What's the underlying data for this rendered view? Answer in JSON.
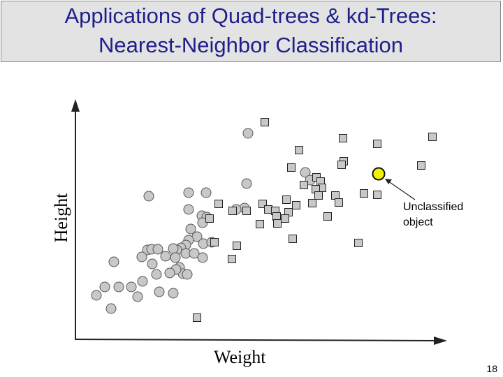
{
  "slide": {
    "title_line1": "Applications of Quad-trees & kd-Trees:",
    "title_line2": "Nearest-Neighbor Classification",
    "page_number": "18"
  },
  "annotation": {
    "line1": "Unclassified",
    "line2": "object"
  },
  "axes": {
    "xlabel": "Weight",
    "ylabel": "Height"
  },
  "colors": {
    "point_fill": "#c8c8c8",
    "unclassified_fill": "#f2f200",
    "title_text": "#1f1f8c"
  },
  "chart_data": {
    "type": "scatter",
    "xlabel": "Weight",
    "ylabel": "Height",
    "grid": false,
    "series": [
      {
        "marker": "circle",
        "points": [
          [
            355,
            191
          ],
          [
            437,
            247
          ],
          [
            444,
            258
          ],
          [
            353,
            263
          ],
          [
            213,
            281
          ],
          [
            270,
            276
          ],
          [
            295,
            276
          ],
          [
            350,
            298
          ],
          [
            338,
            300
          ],
          [
            270,
            300
          ],
          [
            289,
            309
          ],
          [
            296,
            311
          ],
          [
            290,
            319
          ],
          [
            273,
            328
          ],
          [
            282,
            339
          ],
          [
            270,
            344
          ],
          [
            266,
            351
          ],
          [
            259,
            355
          ],
          [
            253,
            358
          ],
          [
            211,
            358
          ],
          [
            217,
            357
          ],
          [
            226,
            357
          ],
          [
            248,
            356
          ],
          [
            291,
            349
          ],
          [
            303,
            347
          ],
          [
            251,
            369
          ],
          [
            237,
            367
          ],
          [
            266,
            363
          ],
          [
            278,
            363
          ],
          [
            290,
            369
          ],
          [
            203,
            368
          ],
          [
            163,
            375
          ],
          [
            218,
            378
          ],
          [
            257,
            383
          ],
          [
            262,
            392
          ],
          [
            252,
            386
          ],
          [
            243,
            391
          ],
          [
            268,
            393
          ],
          [
            224,
            393
          ],
          [
            204,
            403
          ],
          [
            188,
            411
          ],
          [
            170,
            411
          ],
          [
            150,
            411
          ],
          [
            138,
            423
          ],
          [
            197,
            425
          ],
          [
            228,
            418
          ],
          [
            248,
            420
          ],
          [
            159,
            442
          ]
        ]
      },
      {
        "marker": "square",
        "points": [
          [
            379,
            175
          ],
          [
            491,
            198
          ],
          [
            540,
            206
          ],
          [
            619,
            196
          ],
          [
            428,
            215
          ],
          [
            492,
            231
          ],
          [
            603,
            237
          ],
          [
            417,
            240
          ],
          [
            489,
            236
          ],
          [
            453,
            254
          ],
          [
            435,
            265
          ],
          [
            459,
            260
          ],
          [
            461,
            269
          ],
          [
            452,
            271
          ],
          [
            456,
            280
          ],
          [
            480,
            280
          ],
          [
            521,
            277
          ],
          [
            540,
            279
          ],
          [
            313,
            292
          ],
          [
            333,
            302
          ],
          [
            353,
            302
          ],
          [
            376,
            292
          ],
          [
            384,
            300
          ],
          [
            394,
            302
          ],
          [
            413,
            304
          ],
          [
            424,
            294
          ],
          [
            410,
            286
          ],
          [
            447,
            291
          ],
          [
            485,
            290
          ],
          [
            396,
            310
          ],
          [
            408,
            313
          ],
          [
            300,
            313
          ],
          [
            372,
            321
          ],
          [
            397,
            320
          ],
          [
            469,
            310
          ],
          [
            419,
            342
          ],
          [
            513,
            348
          ],
          [
            307,
            347
          ],
          [
            339,
            352
          ],
          [
            332,
            371
          ],
          [
            282,
            455
          ]
        ]
      },
      {
        "name": "Unclassified object",
        "marker": "circle",
        "points": [
          [
            542,
            249
          ]
        ]
      }
    ]
  }
}
